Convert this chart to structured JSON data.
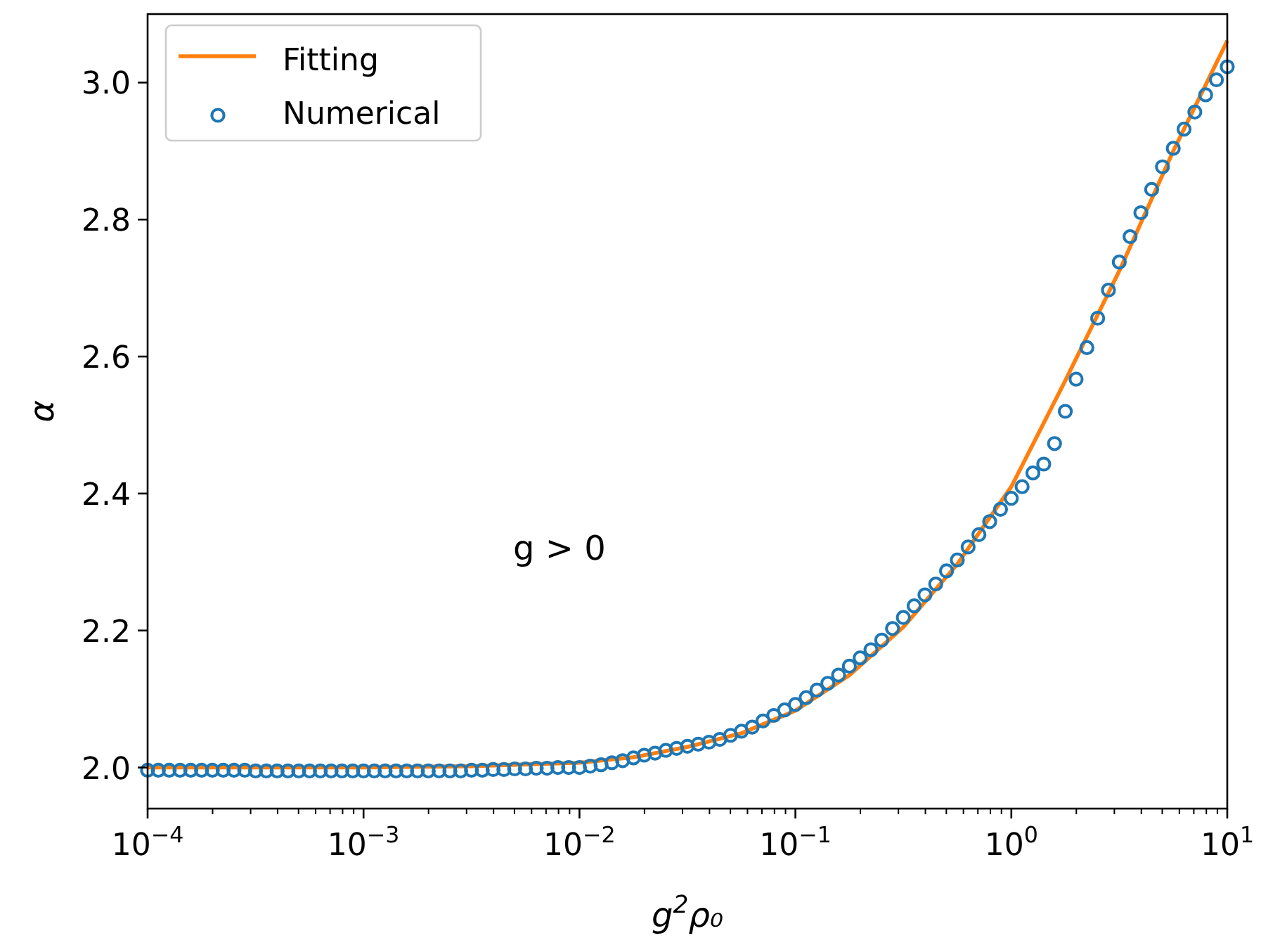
{
  "chart_data": {
    "type": "line",
    "xlabel": "g$^{2}$ρ₀",
    "ylabel": "α",
    "log": "x",
    "legend": "top left",
    "grid": false,
    "xlim": [
      0.0001,
      10
    ],
    "ylim": [
      1.94,
      3.1
    ],
    "xticks": [
      {
        "value": 0.0001,
        "label": "10$^{−4}$"
      },
      {
        "value": 0.0002,
        "label": null
      },
      {
        "value": 0.0003,
        "label": null
      },
      {
        "value": 0.0004,
        "label": null
      },
      {
        "value": 0.0005,
        "label": null
      },
      {
        "value": 0.0006,
        "label": null
      },
      {
        "value": 0.0007,
        "label": null
      },
      {
        "value": 0.0008,
        "label": null
      },
      {
        "value": 0.0009,
        "label": null
      },
      {
        "value": 0.001,
        "label": "10$^{−3}$"
      },
      {
        "value": 0.002,
        "label": null
      },
      {
        "value": 0.003,
        "label": null
      },
      {
        "value": 0.004,
        "label": null
      },
      {
        "value": 0.005,
        "label": null
      },
      {
        "value": 0.006,
        "label": null
      },
      {
        "value": 0.007,
        "label": null
      },
      {
        "value": 0.008,
        "label": null
      },
      {
        "value": 0.009,
        "label": null
      },
      {
        "value": 0.01,
        "label": "10$^{−2}$"
      },
      {
        "value": 0.02,
        "label": null
      },
      {
        "value": 0.03,
        "label": null
      },
      {
        "value": 0.04,
        "label": null
      },
      {
        "value": 0.05,
        "label": null
      },
      {
        "value": 0.06,
        "label": null
      },
      {
        "value": 0.07,
        "label": null
      },
      {
        "value": 0.08,
        "label": null
      },
      {
        "value": 0.09,
        "label": null
      },
      {
        "value": 0.1,
        "label": "10$^{−1}$"
      },
      {
        "value": 0.2,
        "label": null
      },
      {
        "value": 0.3,
        "label": null
      },
      {
        "value": 0.4,
        "label": null
      },
      {
        "value": 0.5,
        "label": null
      },
      {
        "value": 0.6,
        "label": null
      },
      {
        "value": 0.7,
        "label": null
      },
      {
        "value": 0.8,
        "label": null
      },
      {
        "value": 0.9,
        "label": null
      },
      {
        "value": 1,
        "label": "10$^{0}$"
      },
      {
        "value": 2,
        "label": null
      },
      {
        "value": 3,
        "label": null
      },
      {
        "value": 4,
        "label": null
      },
      {
        "value": 5,
        "label": null
      },
      {
        "value": 6,
        "label": null
      },
      {
        "value": 7,
        "label": null
      },
      {
        "value": 8,
        "label": null
      },
      {
        "value": 9,
        "label": null
      },
      {
        "value": 10,
        "label": "10$^{1}$"
      }
    ],
    "yticks": [
      {
        "value": 2,
        "label": "2.0"
      },
      {
        "value": 2.2,
        "label": "2.2"
      },
      {
        "value": 2.4,
        "label": "2.4"
      },
      {
        "value": 2.6,
        "label": "2.6"
      },
      {
        "value": 2.8,
        "label": "2.8"
      },
      {
        "value": 3,
        "label": "3.0"
      }
    ],
    "annotations": [
      "g > 0"
    ],
    "series": [
      {
        "name": "Fitting",
        "color": "#ff7f0e",
        "line_style": "solid",
        "marker": "none",
        "x": [
          0.0001,
          0.001,
          0.00316,
          0.01,
          0.0178,
          0.0316,
          0.0562,
          0.1,
          0.178,
          0.316,
          0.562,
          1,
          1.778,
          3.162,
          5.623,
          10
        ],
        "values": [
          2.0,
          2.0,
          2.002,
          2.007,
          2.015,
          2.03,
          2.05,
          2.083,
          2.135,
          2.205,
          2.297,
          2.41,
          2.565,
          2.725,
          2.9,
          3.061
        ]
      },
      {
        "name": "Numerical",
        "type": "scatter",
        "color": "#1f77b4",
        "marker": "circle",
        "x": [
          0.0001,
          0.0001122,
          0.0001259,
          0.0001413,
          0.0001585,
          0.0001778,
          0.0001995,
          0.0002239,
          0.0002512,
          0.0002818,
          0.0003162,
          0.0003548,
          0.0003981,
          0.0004467,
          0.0005012,
          0.0005623,
          0.000631,
          0.0007079,
          0.0007943,
          0.0008913,
          0.001,
          0.001122,
          0.001259,
          0.001413,
          0.001585,
          0.001778,
          0.001995,
          0.002239,
          0.002512,
          0.002818,
          0.003162,
          0.003548,
          0.003981,
          0.004467,
          0.005012,
          0.005623,
          0.00631,
          0.007079,
          0.007943,
          0.008913,
          0.01,
          0.01122,
          0.01259,
          0.01413,
          0.01585,
          0.01778,
          0.01995,
          0.02239,
          0.02512,
          0.02818,
          0.03162,
          0.03548,
          0.03981,
          0.04467,
          0.05012,
          0.05623,
          0.0631,
          0.07079,
          0.07943,
          0.08913,
          0.1,
          0.1122,
          0.1259,
          0.1413,
          0.1585,
          0.1778,
          0.1995,
          0.2239,
          0.2512,
          0.2818,
          0.3162,
          0.3548,
          0.3981,
          0.4467,
          0.5012,
          0.5623,
          0.631,
          0.7079,
          0.7943,
          0.8913,
          1,
          1.122,
          1.259,
          1.413,
          1.585,
          1.778,
          1.995,
          2.239,
          2.512,
          2.818,
          3.162,
          3.548,
          3.981,
          4.467,
          5.012,
          5.623,
          6.31,
          7.079,
          7.943,
          8.913,
          10
        ],
        "values": [
          1.996,
          1.996,
          1.996,
          1.996,
          1.996,
          1.996,
          1.996,
          1.996,
          1.996,
          1.996,
          1.995,
          1.995,
          1.995,
          1.995,
          1.995,
          1.995,
          1.995,
          1.995,
          1.995,
          1.995,
          1.995,
          1.995,
          1.995,
          1.995,
          1.995,
          1.995,
          1.995,
          1.995,
          1.995,
          1.995,
          1.996,
          1.996,
          1.997,
          1.997,
          1.998,
          1.998,
          1.999,
          1.999,
          2.0,
          2.0,
          2.0,
          2.002,
          2.004,
          2.007,
          2.01,
          2.014,
          2.018,
          2.021,
          2.025,
          2.028,
          2.031,
          2.034,
          2.037,
          2.041,
          2.047,
          2.053,
          2.059,
          2.068,
          2.076,
          2.084,
          2.092,
          2.102,
          2.113,
          2.123,
          2.135,
          2.148,
          2.16,
          2.172,
          2.186,
          2.203,
          2.219,
          2.236,
          2.252,
          2.268,
          2.287,
          2.303,
          2.322,
          2.34,
          2.359,
          2.377,
          2.393,
          2.41,
          2.43,
          2.443,
          2.473,
          2.52,
          2.567,
          2.613,
          2.656,
          2.697,
          2.738,
          2.775,
          2.81,
          2.844,
          2.877,
          2.904,
          2.932,
          2.957,
          2.982,
          3.004,
          3.023
        ]
      }
    ]
  }
}
